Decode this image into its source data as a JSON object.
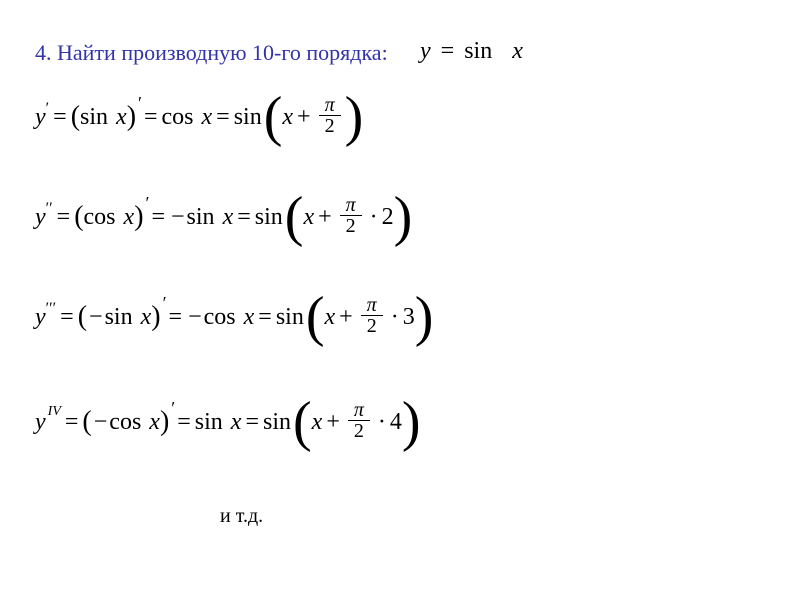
{
  "title": "4. Найти производную 10-го порядка:",
  "given": {
    "lhs": "y",
    "eq": "=",
    "func": "sin",
    "var": "x"
  },
  "rows": [
    {
      "y_prime": "′",
      "inner_func": "sin",
      "inner_sign": "",
      "inner_var": "x",
      "mid_sign": "",
      "mid_func": "cos",
      "mid_var": "x",
      "arg_var": "x",
      "arg_plus": "+",
      "pi": "π",
      "den": "2",
      "dot": "",
      "mult": ""
    },
    {
      "y_prime": "′′",
      "inner_func": "cos",
      "inner_sign": "",
      "inner_var": "x",
      "mid_sign": "−",
      "mid_func": "sin",
      "mid_var": "x",
      "arg_var": "x",
      "arg_plus": "+",
      "pi": "π",
      "den": "2",
      "dot": "·",
      "mult": "2"
    },
    {
      "y_prime": "′′′",
      "inner_func": "sin",
      "inner_sign": "−",
      "inner_var": "x",
      "mid_sign": "−",
      "mid_func": "cos",
      "mid_var": "x",
      "arg_var": "x",
      "arg_plus": "+",
      "pi": "π",
      "den": "2",
      "dot": "·",
      "mult": "3"
    },
    {
      "y_roman": "IV",
      "inner_func": "cos",
      "inner_sign": "−",
      "inner_var": "x",
      "mid_sign": "",
      "mid_func": "sin",
      "mid_var": "x",
      "arg_var": "x",
      "arg_plus": "+",
      "pi": "π",
      "den": "2",
      "dot": "·",
      "mult": "4"
    }
  ],
  "common": {
    "y": "y",
    "eq": "=",
    "sin": "sin"
  },
  "etc": "и т.д.",
  "colors": {
    "title": "#3333aa",
    "text": "#000000",
    "background": "#ffffff"
  }
}
